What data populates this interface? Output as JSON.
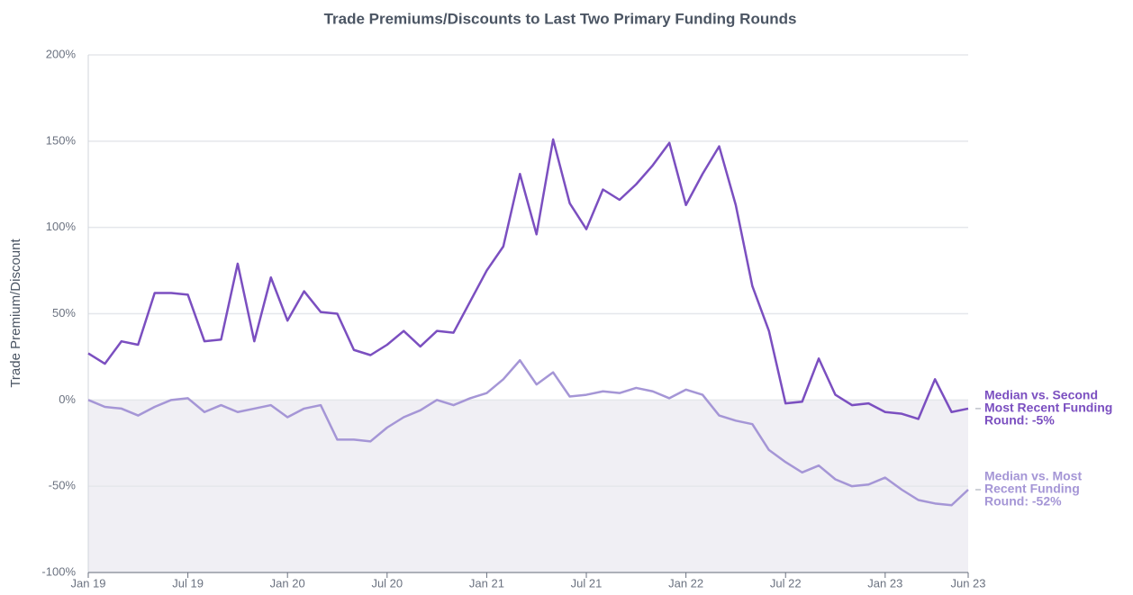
{
  "chart_data": {
    "type": "line",
    "title": "Trade Premiums/Discounts to Last Two Primary Funding Rounds",
    "y_label": "Trade Premium/Discount",
    "categories": [
      "Jan 19",
      null,
      null,
      null,
      null,
      null,
      "Jul 19",
      null,
      null,
      null,
      null,
      null,
      "Jan 20",
      null,
      null,
      null,
      null,
      null,
      "Jul 20",
      null,
      null,
      null,
      null,
      null,
      "Jan 21",
      null,
      null,
      null,
      null,
      null,
      "Jul 21",
      null,
      null,
      null,
      null,
      null,
      "Jan 22",
      null,
      null,
      null,
      null,
      null,
      "Jul 22",
      null,
      null,
      null,
      null,
      null,
      "Jan 23",
      null,
      null,
      null,
      null,
      "Jun 23"
    ],
    "series": [
      {
        "label": [
          "Median vs. Second",
          "Most Recent Funding",
          "Round: -5%"
        ],
        "color": "#7b4fc0",
        "values": [
          27,
          21,
          34,
          32,
          62,
          62,
          61,
          34,
          35,
          79,
          34,
          71,
          46,
          63,
          51,
          50,
          29,
          26,
          32,
          40,
          31,
          40,
          39,
          57,
          75,
          89,
          131,
          96,
          151,
          114,
          99,
          122,
          116,
          125,
          136,
          149,
          113,
          131,
          147,
          113,
          66,
          40,
          -2,
          -1,
          24,
          3,
          -3,
          -2,
          -7,
          -8,
          -11,
          12,
          -7,
          -5
        ]
      },
      {
        "label": [
          "Median vs. Most",
          "Recent Funding",
          "Round: -52%"
        ],
        "color": "#a596d6",
        "values": [
          0,
          -4,
          -5,
          -9,
          -4,
          0,
          1,
          -7,
          -3,
          -7,
          -5,
          -3,
          -10,
          -5,
          -3,
          -23,
          -23,
          -24,
          -16,
          -10,
          -6,
          0,
          -3,
          1,
          4,
          12,
          23,
          9,
          16,
          2,
          3,
          5,
          4,
          7,
          5,
          1,
          6,
          3,
          -9,
          -12,
          -14,
          -29,
          -36,
          -42,
          -38,
          -46,
          -50,
          -49,
          -45,
          -52,
          -58,
          -60,
          -61,
          -52
        ]
      }
    ],
    "ylim": [
      -100,
      200
    ],
    "yticks": [
      {
        "value": -100,
        "label": "-100%"
      },
      {
        "value": -50,
        "label": "-50%"
      },
      {
        "value": 0,
        "label": "0%"
      },
      {
        "value": 50,
        "label": "50%"
      },
      {
        "value": 100,
        "label": "100%"
      },
      {
        "value": 150,
        "label": "150%"
      },
      {
        "value": 200,
        "label": "200%"
      }
    ],
    "grid": true
  }
}
